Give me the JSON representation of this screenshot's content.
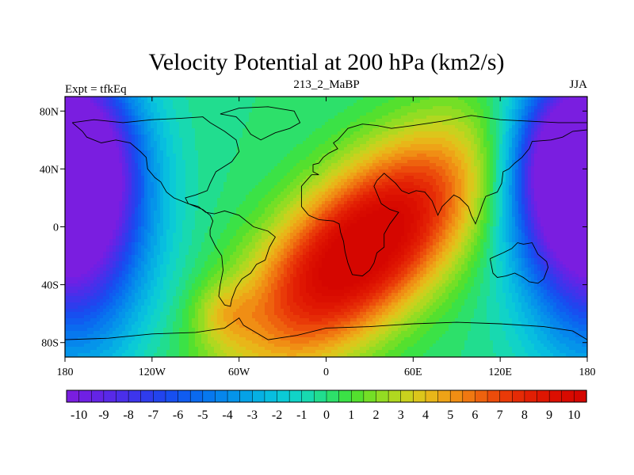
{
  "chart_data": {
    "type": "heatmap",
    "title": "Velocity Potential at 200 hPa (km2/s)",
    "subtitle_left": "Expt = tfkEq",
    "subtitle_center": "213_2_MaBP",
    "subtitle_right": "JJA",
    "x_ticks": [
      {
        "value": -180,
        "label": "180"
      },
      {
        "value": -120,
        "label": "120W"
      },
      {
        "value": -60,
        "label": "60W"
      },
      {
        "value": 0,
        "label": "0"
      },
      {
        "value": 60,
        "label": "60E"
      },
      {
        "value": 120,
        "label": "120E"
      },
      {
        "value": 180,
        "label": "180"
      }
    ],
    "y_ticks": [
      {
        "value": 80,
        "label": "80N"
      },
      {
        "value": 40,
        "label": "40N"
      },
      {
        "value": 0,
        "label": "0"
      },
      {
        "value": -40,
        "label": "40S"
      },
      {
        "value": -80,
        "label": "80S"
      }
    ],
    "xlim": [
      -180,
      180
    ],
    "ylim": [
      -90,
      90
    ],
    "colorbar": {
      "min": -10.5,
      "max": 10.5,
      "step": 0.5,
      "labels": [
        "-10",
        "-9",
        "-8",
        "-7",
        "-6",
        "-5",
        "-4",
        "-3",
        "-2",
        "-1",
        "0",
        "1",
        "2",
        "3",
        "4",
        "5",
        "6",
        "7",
        "8",
        "9",
        "10"
      ],
      "colors": [
        "#7a1ee0",
        "#6f20e4",
        "#6424e6",
        "#5829e8",
        "#4a2fea",
        "#3d35ec",
        "#2f3ced",
        "#2244ee",
        "#174ff0",
        "#105cf0",
        "#0a6aef",
        "#0778ee",
        "#0686ec",
        "#0594ea",
        "#05a2e7",
        "#06b0e3",
        "#08bedf",
        "#0bcad6",
        "#11d3c7",
        "#18d9b0",
        "#21dd8f",
        "#2de06a",
        "#3be246",
        "#54e02e",
        "#74df26",
        "#93dc23",
        "#b0d820",
        "#c9d11e",
        "#dcc61b",
        "#e8b619",
        "#eea317",
        "#f08e14",
        "#f07811",
        "#ee620e",
        "#ec4c0b",
        "#e93a08",
        "#e52b06",
        "#e21f04",
        "#df1602",
        "#db0f01",
        "#d80a00",
        "#d50600"
      ]
    },
    "centers": [
      {
        "name": "positive",
        "lon": 25,
        "lat": -15,
        "amplitude": 11.5
      },
      {
        "name": "negative-west",
        "lon": -175,
        "lat": 10,
        "amplitude": -11
      },
      {
        "name": "negative-east",
        "lon": 175,
        "lat": 45,
        "amplitude": -11
      }
    ]
  }
}
